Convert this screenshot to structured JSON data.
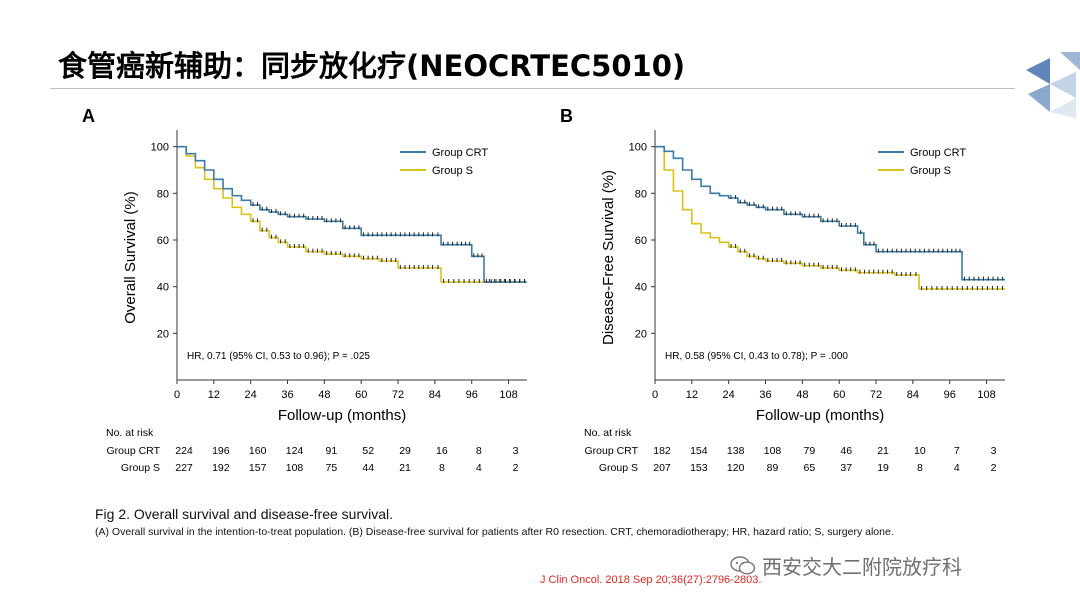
{
  "slide": {
    "title": "食管癌新辅助：同步放化疗(NEOCRTEC5010)",
    "caption_title": "Fig 2. Overall survival and disease-free survival.",
    "caption_body": "(A) Overall survival in the intention-to-treat population. (B) Disease-free survival for patients after R0 resection. CRT, chemoradiotherapy; HR, hazard ratio; S, surgery alone.",
    "watermark": "西安交大二附院放疗科",
    "citation": "J Clin Oncol. 2018 Sep 20;36(27):2796-2803.",
    "colors": {
      "crt": "#3a7ca5",
      "s": "#d9c21c",
      "citation": "#e0261f"
    },
    "icons": [
      "logo-icon",
      "wechat-icon"
    ]
  },
  "chart_data": [
    {
      "type": "line",
      "panel_label": "A",
      "ylabel": "Overall Survival (%)",
      "xlabel": "Follow-up (months)",
      "xlim": [
        0,
        114
      ],
      "ylim": [
        0,
        105
      ],
      "xticks": [
        0,
        12,
        24,
        36,
        48,
        60,
        72,
        84,
        96,
        108
      ],
      "yticks": [
        20,
        40,
        60,
        80,
        100
      ],
      "legend_position": "top-right",
      "annotation": "HR, 0.71 (95% CI, 0.53 to 0.96); P = .025",
      "series": [
        {
          "name": "Group CRT",
          "x": [
            0,
            3,
            6,
            9,
            12,
            15,
            18,
            21,
            24,
            27,
            30,
            33,
            36,
            42,
            48,
            54,
            60,
            66,
            72,
            78,
            84,
            86,
            92,
            96,
            100,
            114
          ],
          "y": [
            100,
            97,
            94,
            90,
            86,
            82,
            79,
            77,
            75,
            73,
            72,
            71,
            70,
            69,
            68,
            65,
            62,
            62,
            62,
            62,
            62,
            58,
            58,
            53,
            42,
            42
          ]
        },
        {
          "name": "Group S",
          "x": [
            0,
            3,
            6,
            9,
            12,
            15,
            18,
            21,
            24,
            27,
            30,
            33,
            36,
            42,
            48,
            54,
            60,
            66,
            72,
            78,
            84,
            86,
            96,
            114
          ],
          "y": [
            100,
            96,
            91,
            86,
            82,
            78,
            74,
            71,
            68,
            64,
            61,
            59,
            57,
            55,
            54,
            53,
            52,
            51,
            48,
            48,
            48,
            42,
            42,
            42
          ]
        }
      ],
      "risk_table": {
        "header": "No. at risk",
        "rows": [
          {
            "label": "Group CRT",
            "values": [
              224,
              196,
              160,
              124,
              91,
              52,
              29,
              16,
              8,
              3
            ]
          },
          {
            "label": "Group S",
            "values": [
              227,
              192,
              157,
              108,
              75,
              44,
              21,
              8,
              4,
              2
            ]
          }
        ]
      }
    },
    {
      "type": "line",
      "panel_label": "B",
      "ylabel": "Disease-Free Survival (%)",
      "xlabel": "Follow-up (months)",
      "xlim": [
        0,
        114
      ],
      "ylim": [
        0,
        105
      ],
      "xticks": [
        0,
        12,
        24,
        36,
        48,
        60,
        72,
        84,
        96,
        108
      ],
      "yticks": [
        20,
        40,
        60,
        80,
        100
      ],
      "legend_position": "top-right",
      "annotation": "HR, 0.58 (95% CI, 0.43 to 0.78); P = .000",
      "series": [
        {
          "name": "Group CRT",
          "x": [
            0,
            3,
            6,
            9,
            12,
            15,
            18,
            21,
            24,
            27,
            30,
            33,
            36,
            42,
            48,
            54,
            60,
            66,
            68,
            72,
            78,
            84,
            96,
            100,
            114
          ],
          "y": [
            100,
            98,
            95,
            90,
            86,
            83,
            80,
            79,
            78,
            76,
            75,
            74,
            73,
            71,
            70,
            68,
            66,
            63,
            58,
            55,
            55,
            55,
            55,
            43,
            43
          ]
        },
        {
          "name": "Group S",
          "x": [
            0,
            3,
            6,
            9,
            12,
            15,
            18,
            21,
            24,
            27,
            30,
            33,
            36,
            42,
            48,
            54,
            60,
            66,
            72,
            78,
            84,
            86,
            96,
            114
          ],
          "y": [
            100,
            90,
            81,
            73,
            67,
            63,
            61,
            59,
            57,
            55,
            53,
            52,
            51,
            50,
            49,
            48,
            47,
            46,
            46,
            45,
            45,
            39,
            39,
            39
          ]
        }
      ],
      "risk_table": {
        "header": "No. at risk",
        "rows": [
          {
            "label": "Group CRT",
            "values": [
              182,
              154,
              138,
              108,
              79,
              46,
              21,
              10,
              7,
              3
            ]
          },
          {
            "label": "Group S",
            "values": [
              207,
              153,
              120,
              89,
              65,
              37,
              19,
              8,
              4,
              2
            ]
          }
        ]
      }
    }
  ]
}
